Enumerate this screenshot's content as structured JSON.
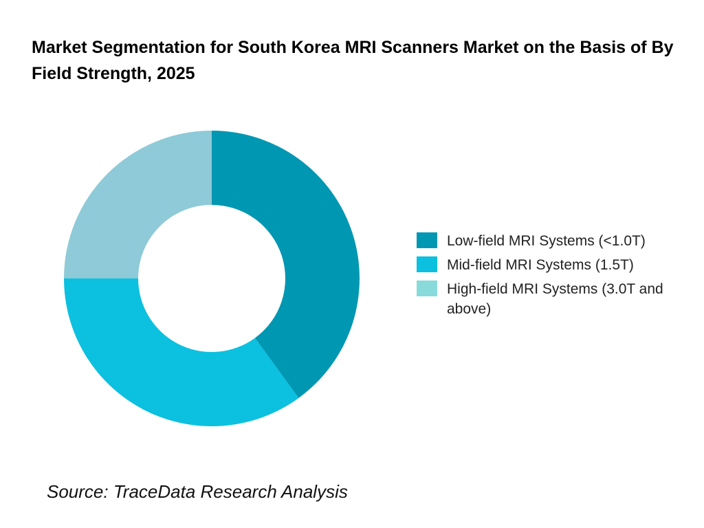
{
  "chart_data": {
    "type": "pie",
    "variant": "donut",
    "title": "Market Segmentation for South Korea MRI Scanners Market on the Basis of By Field Strength, 2025",
    "categories": [
      "Low-field MRI Systems (<1.0T)",
      "Mid-field MRI Systems (1.5T)",
      "High-field MRI Systems (3.0T and above)"
    ],
    "values": [
      40,
      35,
      25
    ],
    "unit": "%",
    "colors": [
      "#0097B2",
      "#0CC0DF",
      "#8ECAD7"
    ],
    "legend_colors": [
      "#0097B2",
      "#0CC0DF",
      "#88DBDA"
    ],
    "legend_position": "right"
  },
  "source": "Source: TraceData Research Analysis"
}
